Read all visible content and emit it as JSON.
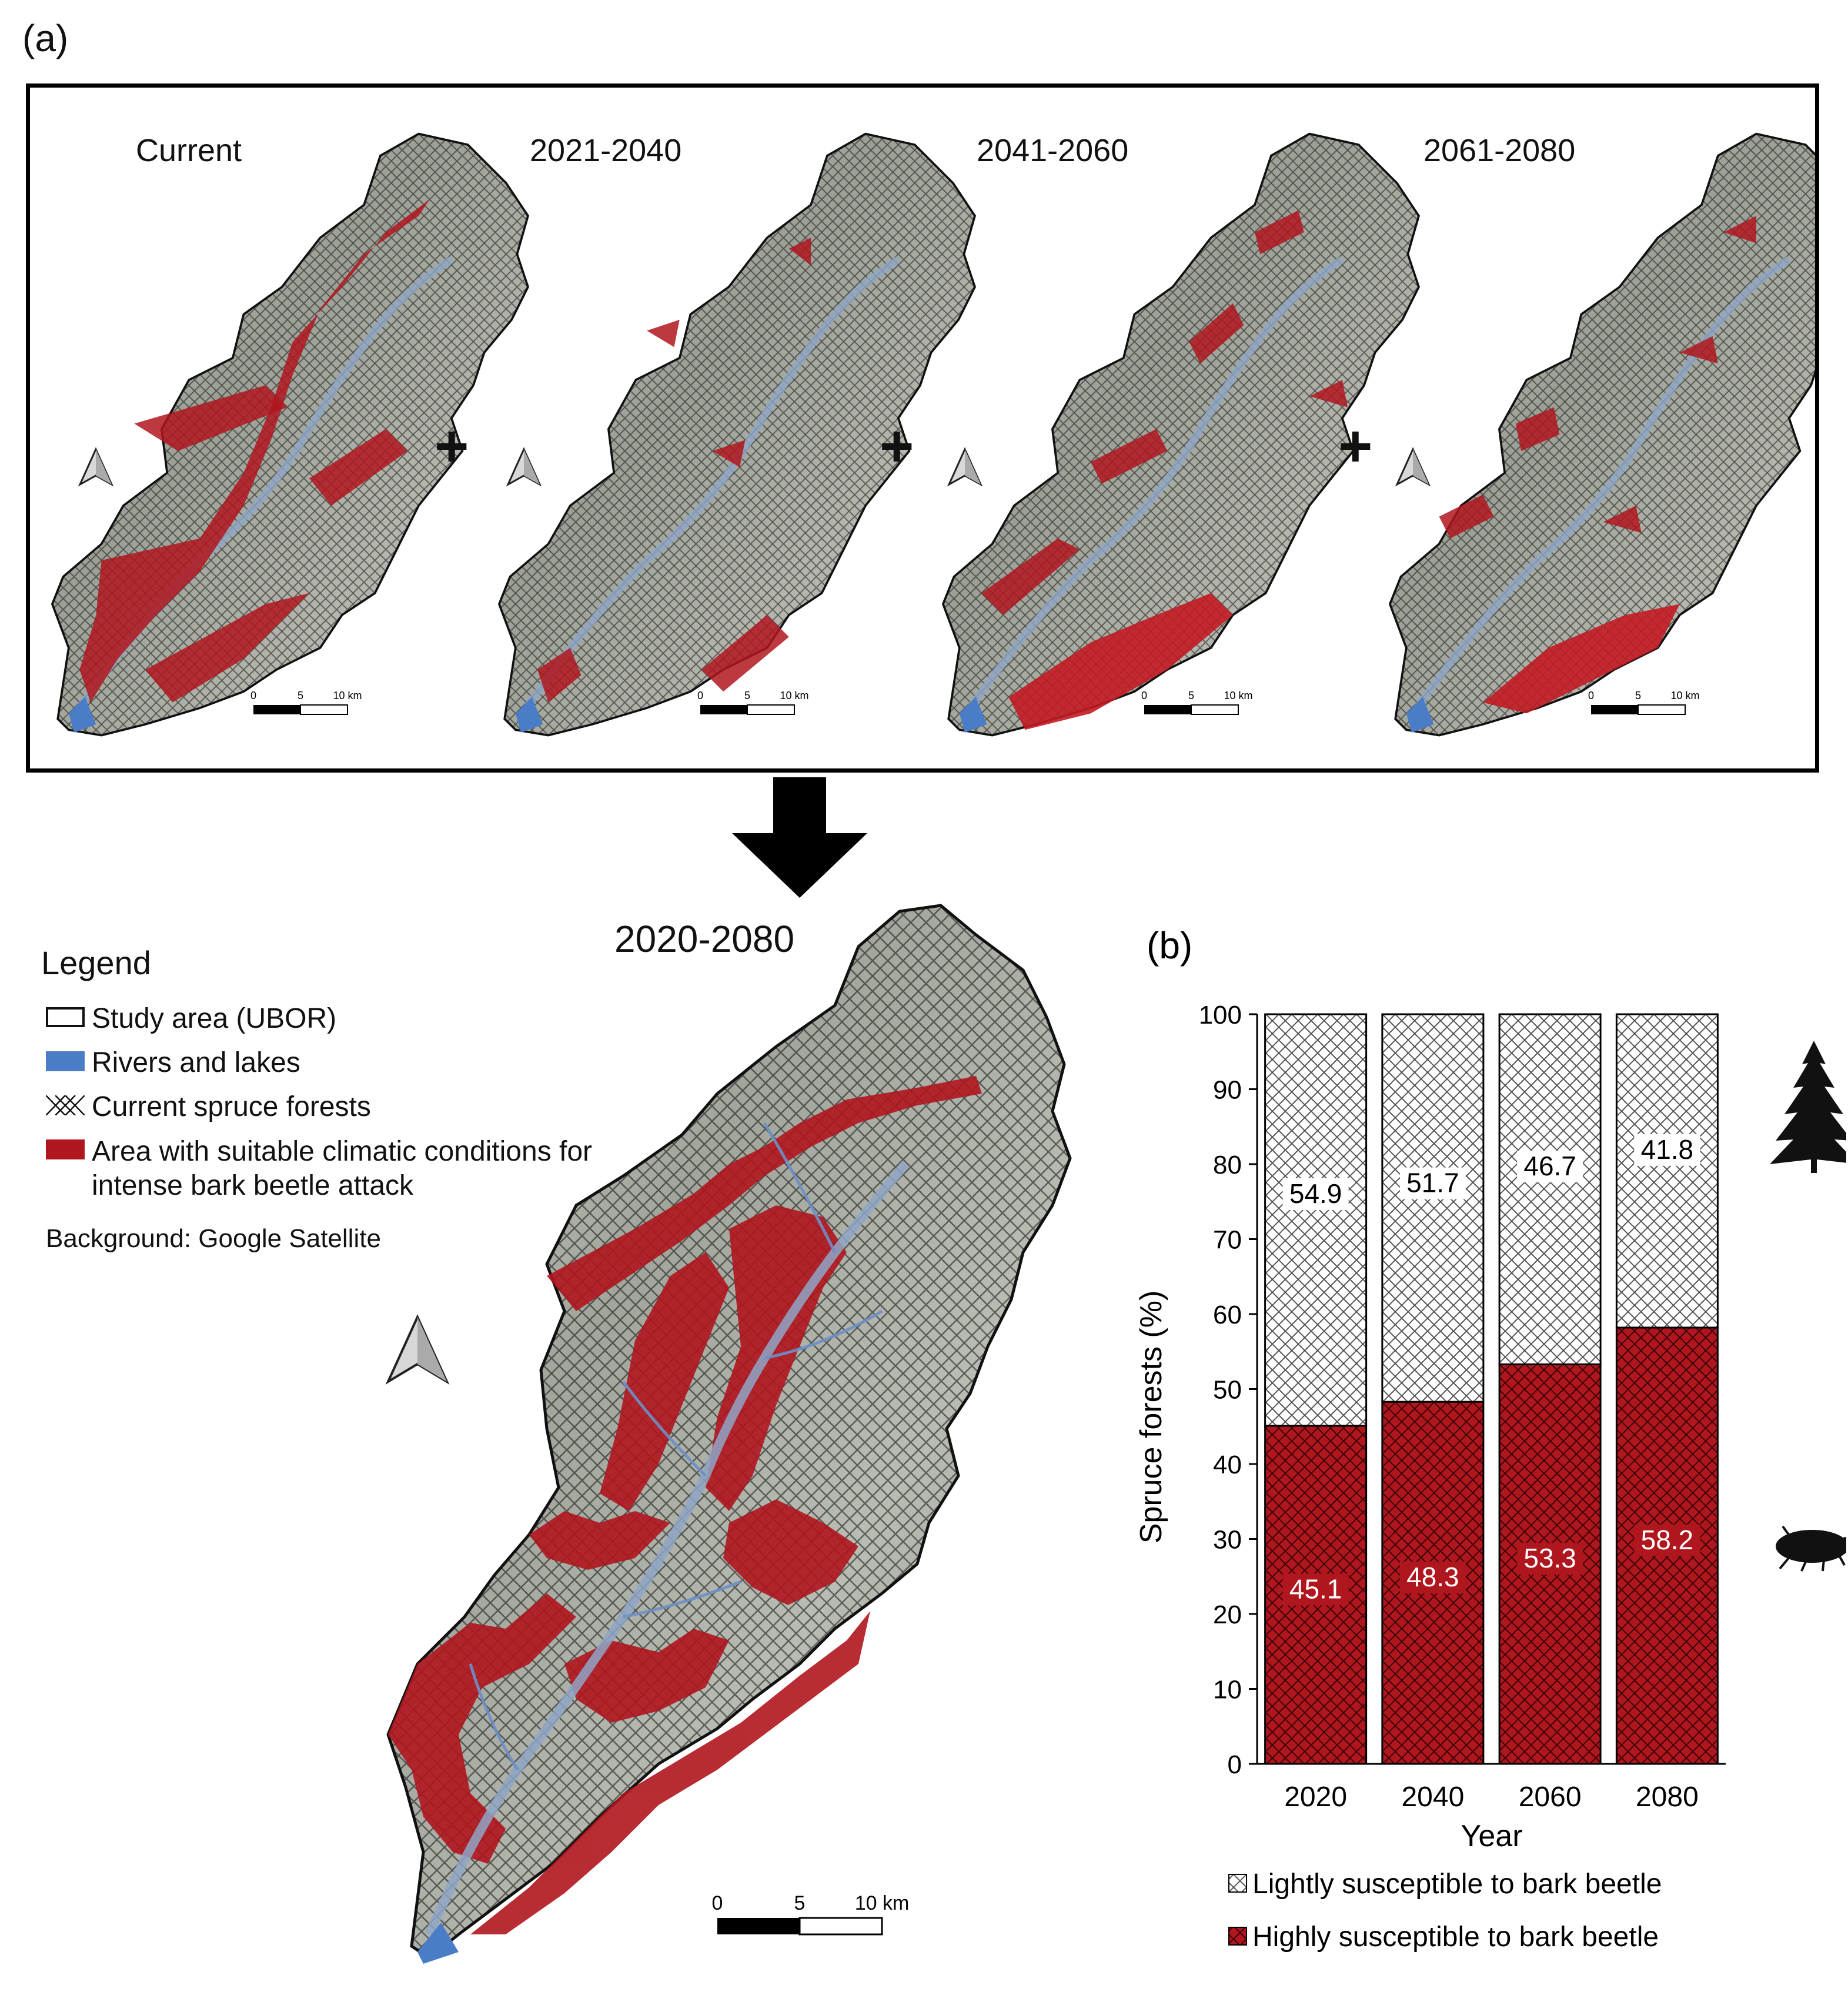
{
  "panel_a": {
    "label": "(a)",
    "maps": [
      {
        "title": "Current"
      },
      {
        "title": "2021-2040"
      },
      {
        "title": "2041-2060"
      },
      {
        "title": "2061-2080"
      }
    ],
    "plus": "+",
    "scalebar": {
      "t0": "0",
      "t5": "5",
      "t10": "10 km"
    }
  },
  "combined": {
    "title": "2020-2080",
    "scalebar": {
      "t0": "0",
      "t5": "5",
      "t10": "10 km"
    }
  },
  "legend": {
    "title": "Legend",
    "items": [
      {
        "label": "Study area (UBOR)"
      },
      {
        "label": "Rivers and lakes"
      },
      {
        "label": "Current spruce forests"
      },
      {
        "label": "Area with suitable climatic conditions for intense bark beetle attack"
      }
    ],
    "background_note": "Background: Google Satellite"
  },
  "colors": {
    "red": "#b0161e",
    "river": "#4a7cc7",
    "terrain": "#9aa096"
  },
  "icons": [
    "north-arrow-icon",
    "spruce-tree-icon",
    "bark-beetle-icon"
  ],
  "chart_data": {
    "type": "bar",
    "stacked": true,
    "panel_label": "(b)",
    "categories": [
      "2020",
      "2040",
      "2060",
      "2080"
    ],
    "series": [
      {
        "name": "Highly susceptible to bark beetle",
        "values": [
          45.1,
          48.3,
          53.3,
          58.2
        ],
        "color": "#b0161e"
      },
      {
        "name": "Lightly susceptible to bark beetle",
        "values": [
          54.9,
          51.7,
          46.7,
          41.8
        ],
        "color": "#ffffff"
      }
    ],
    "xlabel": "Year",
    "ylabel": "Spruce forests (%)",
    "ylim": [
      0,
      100
    ],
    "yticks": [
      "0",
      "10",
      "20",
      "30",
      "40",
      "50",
      "60",
      "70",
      "80",
      "90",
      "100"
    ],
    "legend_position": "bottom"
  }
}
